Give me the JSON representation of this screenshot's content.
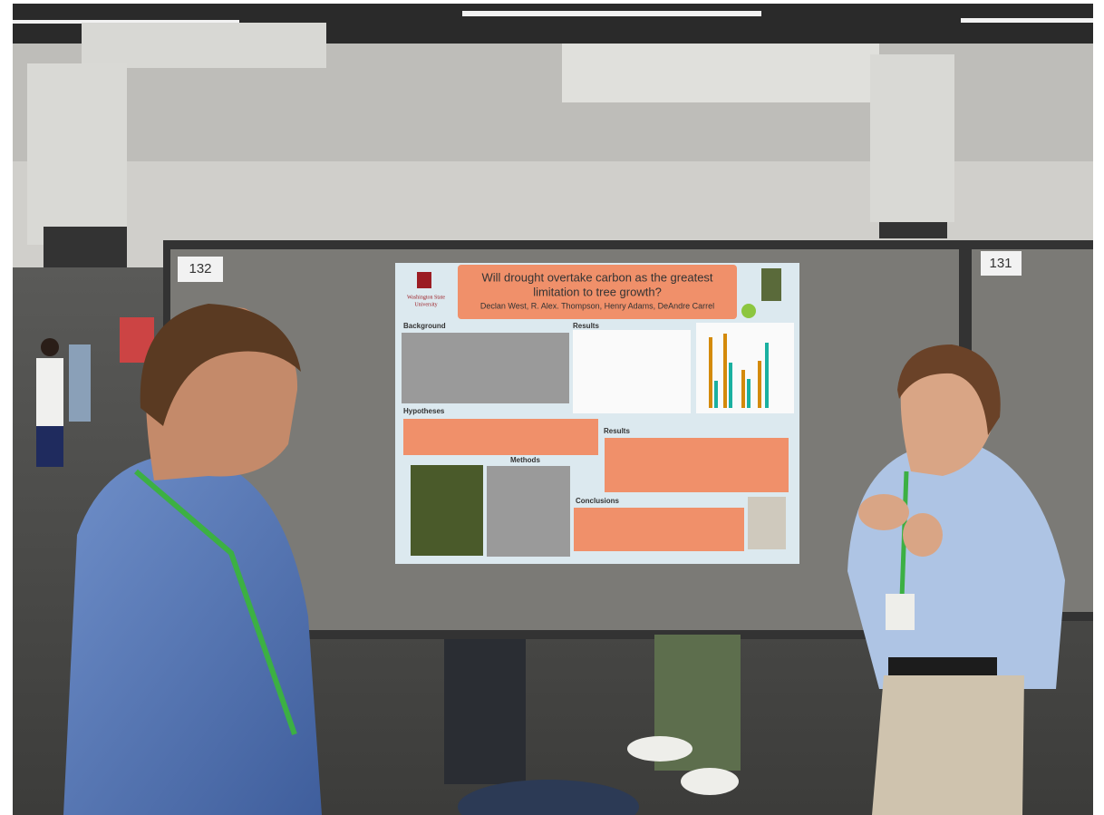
{
  "boards": {
    "left": "132",
    "right": "131"
  },
  "poster": {
    "title_lines": [
      "Will drought overtake carbon as the greatest",
      "limitation to tree growth?"
    ],
    "authors": "Declan West, R. Alex. Thompson, Henry Adams, DeAndre Carrel",
    "institution_lines": [
      "Washington State",
      "University"
    ],
    "sections": {
      "background": "Background",
      "results_top": "Results",
      "hypotheses": "Hypotheses",
      "methods": "Methods",
      "results_right": "Results",
      "conclusions": "Conclusions"
    }
  }
}
